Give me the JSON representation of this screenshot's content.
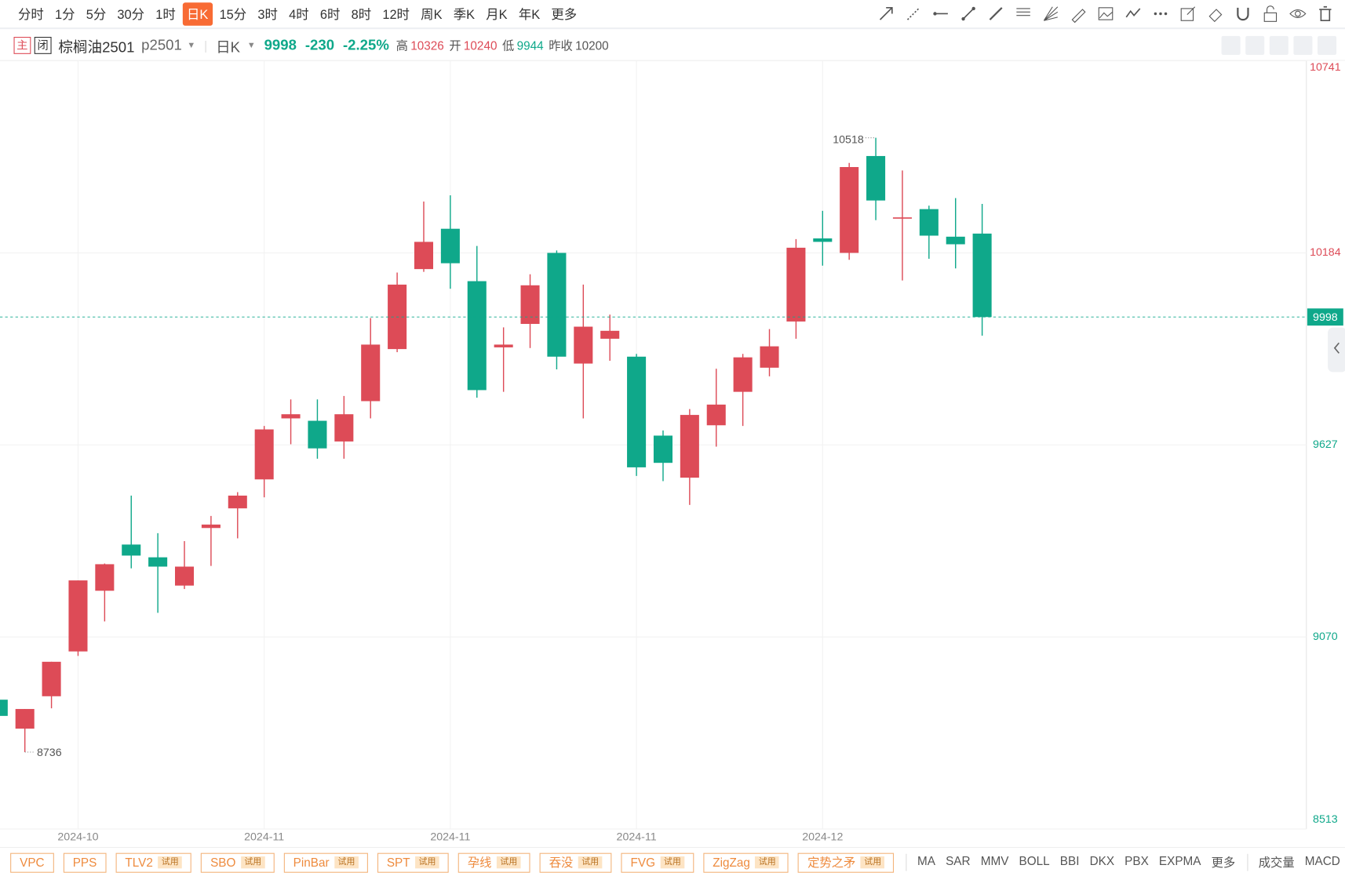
{
  "toolbar": {
    "periods": [
      {
        "label": "分时"
      },
      {
        "label": "1分"
      },
      {
        "label": "5分"
      },
      {
        "label": "30分"
      },
      {
        "label": "1时"
      },
      {
        "label": "日K",
        "selected": true
      },
      {
        "label": "15分"
      },
      {
        "label": "3时"
      },
      {
        "label": "4时"
      },
      {
        "label": "6时"
      },
      {
        "label": "8时"
      },
      {
        "label": "12时"
      },
      {
        "label": "周K"
      },
      {
        "label": "季K"
      },
      {
        "label": "月K"
      },
      {
        "label": "年K"
      },
      {
        "label": "更多"
      }
    ]
  },
  "header": {
    "badge_main": "主",
    "badge_close": "闭",
    "name": "棕榈油2501",
    "code": "p2501",
    "period": "日K",
    "change": "-230",
    "change_pct": "-2.25%",
    "high_label": "高",
    "open_label": "开",
    "low_label": "低",
    "prev_label": "昨收",
    "prev": "10200"
  },
  "chart_data": {
    "type": "candlestick",
    "categories": [
      null,
      null,
      null,
      "2024-10",
      null,
      null,
      null,
      null,
      null,
      null,
      "2024-11",
      null,
      null,
      null,
      null,
      null,
      null,
      "2024-11",
      null,
      null,
      null,
      null,
      null,
      null,
      "2024-11",
      null,
      null,
      null,
      null,
      null,
      null,
      "2024-12",
      null,
      null,
      null,
      null,
      null,
      null
    ],
    "open": [
      8888,
      8804,
      8898,
      9028,
      9204,
      9338,
      9301,
      9219,
      9386,
      9443,
      9527,
      9704,
      9697,
      9637,
      9754,
      9905,
      10137,
      10254,
      10102,
      9910,
      9978,
      10184,
      9863,
      9935,
      9883,
      9654,
      9532,
      9684,
      9781,
      9851,
      9985,
      10226,
      10184,
      10465,
      10285,
      10311,
      10231,
      10240
    ],
    "high": [
      8888,
      8861,
      8998,
      9234,
      9283,
      9480,
      9371,
      9348,
      9421,
      9490,
      9682,
      9759,
      9759,
      9769,
      9995,
      10127,
      10333,
      10351,
      10204,
      9968,
      10122,
      10191,
      10092,
      10005,
      9891,
      9669,
      9731,
      9848,
      9891,
      9963,
      10224,
      10306,
      10445,
      10518,
      10423,
      10321,
      10343,
      10326
    ],
    "low": [
      8841,
      8736,
      8863,
      9015,
      9115,
      9269,
      9140,
      9209,
      9276,
      9356,
      9475,
      9629,
      9587,
      9587,
      9704,
      9896,
      10129,
      10080,
      9764,
      9781,
      9908,
      9846,
      9704,
      9871,
      9537,
      9522,
      9453,
      9622,
      9682,
      9826,
      9935,
      10147,
      10164,
      10279,
      10104,
      10167,
      10139,
      9944
    ],
    "close": [
      8841,
      8861,
      8998,
      9234,
      9281,
      9306,
      9274,
      9274,
      9396,
      9480,
      9672,
      9716,
      9617,
      9716,
      9918,
      10092,
      10216,
      10154,
      9786,
      9918,
      10090,
      9883,
      9970,
      9958,
      9562,
      9575,
      9714,
      9744,
      9881,
      9913,
      10199,
      10216,
      10433,
      10336,
      10287,
      10234,
      10209,
      9998
    ],
    "up_color": "#dd4b57",
    "down_color": "#0fa88a",
    "ylim": [
      8513,
      10741
    ],
    "yticks": [
      8513,
      9070,
      9627,
      10184,
      10741
    ],
    "grid": true
  },
  "indicators": {
    "tags": [
      {
        "name": "VPC"
      },
      {
        "name": "PPS"
      },
      {
        "name": "TLV2",
        "badge": "试用"
      },
      {
        "name": "SBO",
        "badge": "试用"
      },
      {
        "name": "PinBar",
        "badge": "试用"
      },
      {
        "name": "SPT",
        "badge": "试用"
      },
      {
        "name": "孕线",
        "badge": "试用"
      },
      {
        "name": "吞没",
        "badge": "试用"
      },
      {
        "name": "FVG",
        "badge": "试用"
      },
      {
        "name": "ZigZag",
        "badge": "试用"
      },
      {
        "name": "定势之矛",
        "badge": "试用"
      }
    ],
    "main": [
      "MA",
      "SAR",
      "MMV",
      "BOLL",
      "BBI",
      "DKX",
      "PBX",
      "EXPMA",
      "更多"
    ],
    "sub": [
      "成交量",
      "MACD"
    ]
  }
}
